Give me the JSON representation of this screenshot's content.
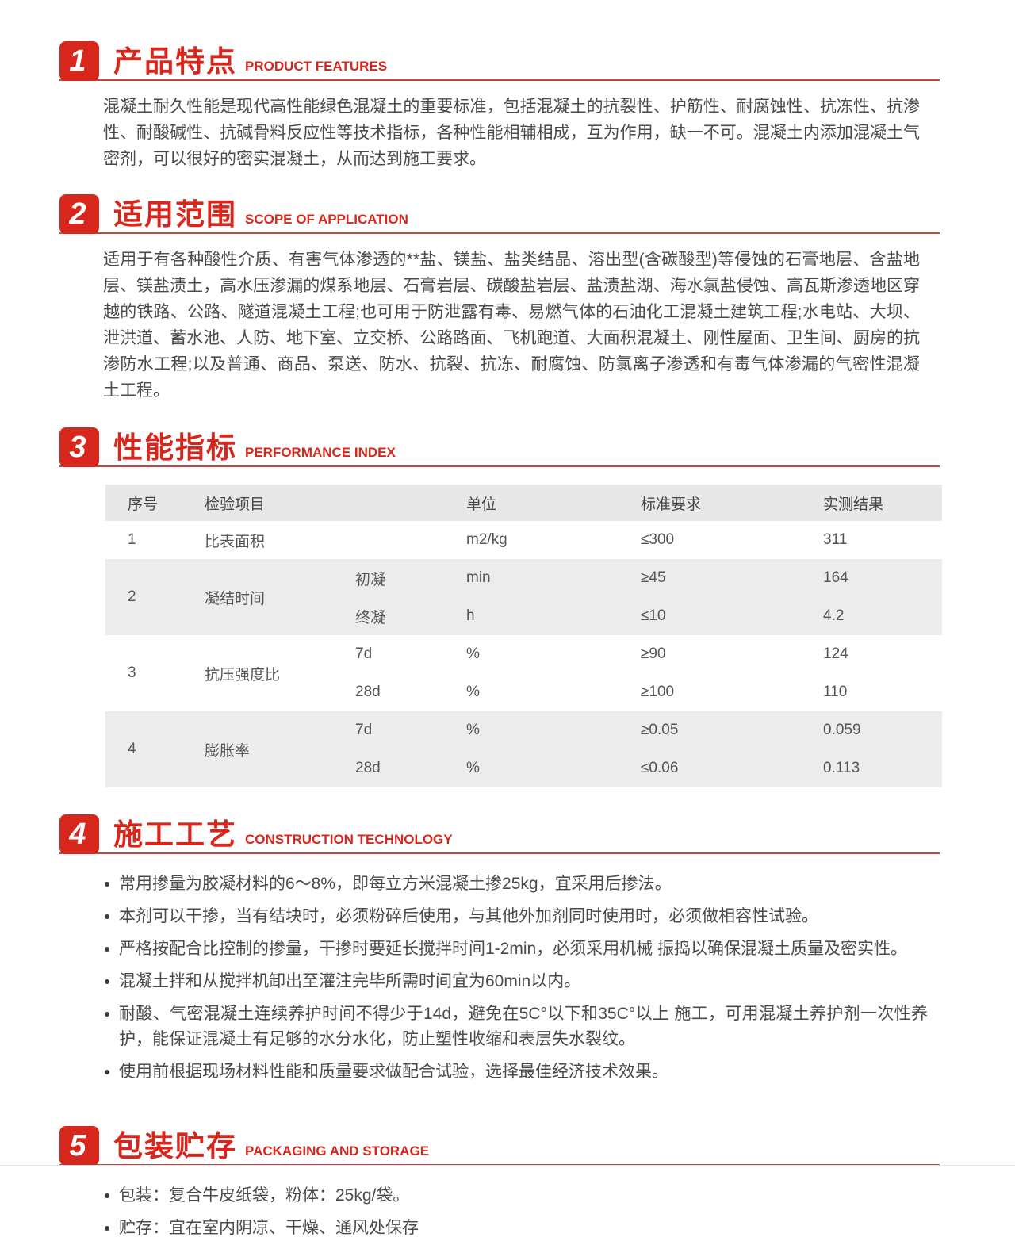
{
  "colors": {
    "accent": "#d7271d",
    "header_rule": "#bf4a41",
    "table_stripe": "#ececec",
    "table_header_bg": "#e8e8e8"
  },
  "sections": [
    {
      "number": "1",
      "title_zh": "产品特点",
      "title_en": "PRODUCT FEATURES",
      "paragraph": "混凝土耐久性能是现代高性能绿色混凝土的重要标准，包括混凝土的抗裂性、护筋性、耐腐蚀性、抗冻性、抗渗性、耐酸碱性、抗碱骨料反应性等技术指标，各种性能相辅相成，互为作用，缺一不可。混凝土内添加混凝土气密剂，可以很好的密实混凝土，从而达到施工要求。"
    },
    {
      "number": "2",
      "title_zh": "适用范围",
      "title_en": "SCOPE OF APPLICATION",
      "paragraph": "适用于有各种酸性介质、有害气体渗透的**盐、镁盐、盐类结晶、溶出型(含碳酸型)等侵蚀的石膏地层、含盐地层、镁盐渍土，高水压渗漏的煤系地层、石膏岩层、碳酸盐岩层、盐渍盐湖、海水氯盐侵蚀、高瓦斯渗透地区穿越的铁路、公路、隧道混凝土工程;也可用于防泄露有毒、易燃气体的石油化工混凝土建筑工程;水电站、大坝、泄洪道、蓄水池、人防、地下室、立交桥、公路路面、飞机跑道、大面积混凝土、刚性屋面、卫生间、厨房的抗渗防水工程;以及普通、商品、泵送、防水、抗裂、抗冻、耐腐蚀、防氯离子渗透和有毒气体渗漏的气密性混凝土工程。"
    },
    {
      "number": "3",
      "title_zh": "性能指标",
      "title_en": "PERFORMANCE INDEX"
    },
    {
      "number": "4",
      "title_zh": "施工工艺",
      "title_en": "CONSTRUCTION TECHNOLOGY",
      "bullets": [
        "常用掺量为胶凝材料的6～8%，即每立方米混凝土掺25kg，宜采用后掺法。",
        "本剂可以干掺，当有结块时，必须粉碎后使用，与其他外加剂同时使用时，必须做相容性试验。",
        "严格按配合比控制的掺量，干掺时要延长搅拌时间1-2min，必须采用机械 振捣以确保混凝土质量及密实性。",
        "混凝土拌和从搅拌机卸出至灌注完毕所需时间宜为60min以内。",
        "耐酸、气密混凝土连续养护时间不得少于14d，避免在5C°以下和35C°以上 施工，可用混凝土养护剂一次性养护，能保证混凝土有足够的水分水化，防止塑性收缩和表层失水裂纹。",
        "使用前根据现场材料性能和质量要求做配合试验，选择最佳经济技术效果。"
      ]
    },
    {
      "number": "5",
      "title_zh": "包装贮存",
      "title_en": "PACKAGING AND STORAGE",
      "bullets": [
        "包装：复合牛皮纸袋，粉体：25kg/袋。",
        "贮存：宜在室内阴凉、干燥、通风处保存"
      ]
    }
  ],
  "table": {
    "headers": {
      "no": "序号",
      "item": "检验项目",
      "sub": "",
      "unit": "单位",
      "standard": "标准要求",
      "result": "实测结果"
    },
    "rows": [
      {
        "no": "1",
        "item": "比表面积",
        "sub": "",
        "unit": "m2/kg",
        "standard": "≤300",
        "result": "311"
      },
      {
        "no": "2",
        "item": "凝结时间",
        "subs": [
          {
            "sub": "初凝",
            "unit": "min",
            "standard": "≥45",
            "result": "164"
          },
          {
            "sub": "终凝",
            "unit": "h",
            "standard": "≤10",
            "result": "4.2"
          }
        ]
      },
      {
        "no": "3",
        "item": "抗压强度比",
        "subs": [
          {
            "sub": "7d",
            "unit": "%",
            "standard": "≥90",
            "result": "124"
          },
          {
            "sub": "28d",
            "unit": "%",
            "standard": "≥100",
            "result": "110"
          }
        ]
      },
      {
        "no": "4",
        "item": "膨胀率",
        "subs": [
          {
            "sub": "7d",
            "unit": "%",
            "standard": "≥0.05",
            "result": "0.059"
          },
          {
            "sub": "28d",
            "unit": "%",
            "standard": "≤0.06",
            "result": "0.113"
          }
        ]
      }
    ]
  }
}
